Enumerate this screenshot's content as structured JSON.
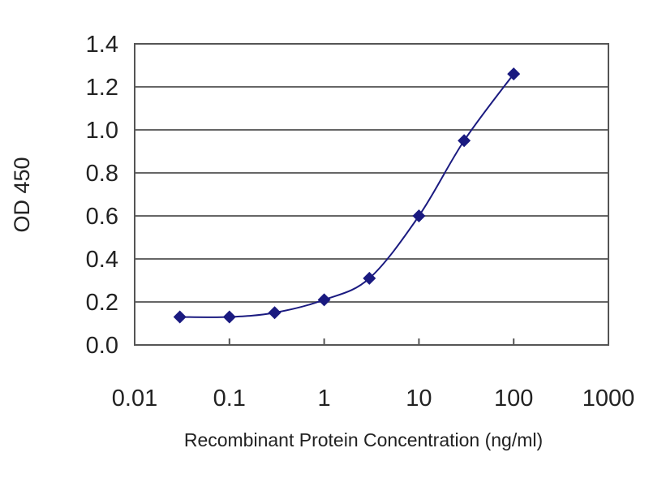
{
  "chart_data": {
    "type": "line",
    "title": "",
    "xlabel": "Recombinant Protein Concentration (ng/ml)",
    "ylabel": "OD 450",
    "xscale": "log",
    "xlim": [
      0.01,
      1000
    ],
    "ylim": [
      0,
      1.4
    ],
    "xticks": [
      "0.01",
      "0.1",
      "1",
      "10",
      "100",
      "1000"
    ],
    "yticks": [
      "0.0",
      "0.2",
      "0.4",
      "0.6",
      "0.8",
      "1.0",
      "1.2",
      "1.4"
    ],
    "grid": "horizontal",
    "marker": "diamond",
    "color": "#1a1a80",
    "series": [
      {
        "x": [
          0.03,
          0.1,
          0.3,
          1,
          3,
          10,
          30,
          100
        ],
        "y": [
          0.13,
          0.13,
          0.15,
          0.21,
          0.31,
          0.6,
          0.95,
          1.26
        ]
      }
    ]
  }
}
